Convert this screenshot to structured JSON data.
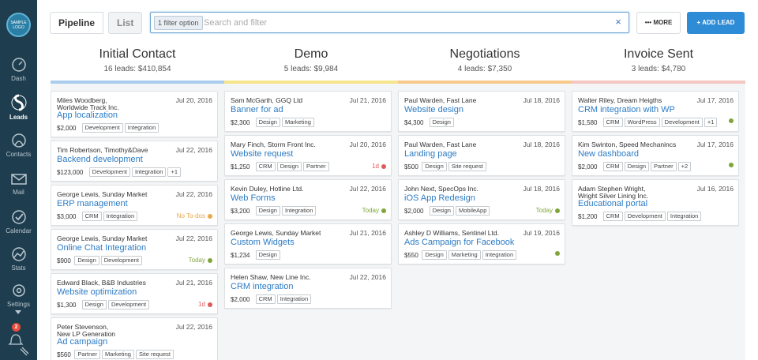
{
  "sidebar": {
    "logo_text": "SAMPLE LOGO",
    "items": [
      {
        "label": "Dash",
        "icon": "dashboard-icon"
      },
      {
        "label": "Leads",
        "icon": "leads-icon"
      },
      {
        "label": "Contacts",
        "icon": "contacts-icon"
      },
      {
        "label": "Mail",
        "icon": "mail-icon"
      },
      {
        "label": "Calendar",
        "icon": "calendar-icon"
      },
      {
        "label": "Stats",
        "icon": "stats-icon"
      },
      {
        "label": "Settings",
        "icon": "settings-icon"
      }
    ],
    "notifications_count": "2"
  },
  "toolbar": {
    "pipeline_label": "Pipeline",
    "list_label": "List",
    "filter_chip": "1 filter option",
    "search_placeholder": "Search and filter",
    "clear_icon": "×",
    "more_label": "••• MORE",
    "add_label": "+  ADD LEAD"
  },
  "colors": {
    "accent": "#2e8bd6",
    "initial_contact": "#a9cdee",
    "demo": "#f6e58d",
    "negotiations": "#f7c98a",
    "invoice_sent": "#f4c7c3",
    "green": "#7fa53a",
    "red": "#e05a5a",
    "orange": "#e8a94a"
  },
  "columns": [
    {
      "title": "Initial Contact",
      "summary": "16 leads: $410,854",
      "cards": [
        {
          "person": "Miles Woodberg,",
          "org": "Worldwide Track Inc.",
          "date": "Jul 20, 2016",
          "title": "App localization",
          "value": "$2,000",
          "tags": [
            "Development",
            "Integration"
          ],
          "status": "",
          "status_color": ""
        },
        {
          "person": "Tim Robertson,  Timothy&Dave",
          "org": "",
          "date": "Jul 22, 2016",
          "title": "Backend development",
          "value": "$123,000",
          "tags": [
            "Development",
            "Integration",
            "+1"
          ],
          "status": "",
          "status_color": ""
        },
        {
          "person": "George Lewis,  Sunday Market",
          "org": "",
          "date": "Jul 22, 2016",
          "title": "ERP management",
          "value": "$3,000",
          "tags": [
            "CRM",
            "Integration"
          ],
          "status": "No To-dos",
          "status_color": "orange"
        },
        {
          "person": "George Lewis,  Sunday Market",
          "org": "",
          "date": "Jul 22, 2016",
          "title": "Online Chat Integration",
          "value": "$900",
          "tags": [
            "Design",
            "Development"
          ],
          "status": "Today",
          "status_color": "green"
        },
        {
          "person": "Edward Black,  B&B Industries",
          "org": "",
          "date": "Jul 21, 2016",
          "title": "Website optimization",
          "value": "$1,300",
          "tags": [
            "Design",
            "Development"
          ],
          "status": "1d",
          "status_color": "red"
        },
        {
          "person": "Peter Stevenson,",
          "org": "New LP Generation",
          "date": "Jul 22, 2016",
          "title": "Ad campaign",
          "value": "$560",
          "tags": [
            "Partner",
            "Marketing",
            "Site request"
          ],
          "status": "",
          "status_color": ""
        }
      ]
    },
    {
      "title": "Demo",
      "summary": "5 leads: $9,984",
      "cards": [
        {
          "person": "Sam McGarth,  GGQ Ltd",
          "org": "",
          "date": "Jul 21, 2016",
          "title": "Banner for ad",
          "value": "$2,300",
          "tags": [
            "Design",
            "Marketing"
          ],
          "status": "",
          "status_color": ""
        },
        {
          "person": "Mary Finch,  Storm Front Inc.",
          "org": "",
          "date": "Jul 20, 2016",
          "title": "Website request",
          "value": "$1,250",
          "tags": [
            "CRM",
            "Design",
            "Partner"
          ],
          "status": "1d",
          "status_color": "red"
        },
        {
          "person": "Kevin Duley,  Hotline Ltd.",
          "org": "",
          "date": "Jul 22, 2016",
          "title": "Web Forms",
          "value": "$3,200",
          "tags": [
            "Design",
            "Integration"
          ],
          "status": "Today",
          "status_color": "green"
        },
        {
          "person": "George Lewis,  Sunday Market",
          "org": "",
          "date": "Jul 21, 2016",
          "title": "Custom Widgets",
          "value": "$1,234",
          "tags": [
            "Design"
          ],
          "status": "",
          "status_color": ""
        },
        {
          "person": "Helen Shaw,  New Line Inc.",
          "org": "",
          "date": "Jul 22, 2016",
          "title": "CRM integration",
          "value": "$2,000",
          "tags": [
            "CRM",
            "Integration"
          ],
          "status": "",
          "status_color": ""
        }
      ]
    },
    {
      "title": "Negotiations",
      "summary": "4 leads: $7,350",
      "cards": [
        {
          "person": "Paul Warden,  Fast Lane",
          "org": "",
          "date": "Jul 18, 2016",
          "title": "Website design",
          "value": "$4,300",
          "tags": [
            "Design"
          ],
          "status": "",
          "status_color": ""
        },
        {
          "person": "Paul Warden,  Fast Lane",
          "org": "",
          "date": "Jul 18, 2016",
          "title": "Landing page",
          "value": "$500",
          "tags": [
            "Design",
            "Site request"
          ],
          "status": "",
          "status_color": ""
        },
        {
          "person": "John Next,  SpecOps Inc.",
          "org": "",
          "date": "Jul 18, 2016",
          "title": "iOS App Redesign",
          "value": "$2,000",
          "tags": [
            "Design",
            "MobileApp"
          ],
          "status": "Today",
          "status_color": "green"
        },
        {
          "person": "Ashley D Williams,  Sentinel Ltd.",
          "org": "",
          "date": "Jul 19, 2016",
          "title": "Ads Campaign for Facebook",
          "value": "$550",
          "tags": [
            "Design",
            "Marketing",
            "Integration"
          ],
          "status": "",
          "status_color": "green"
        }
      ]
    },
    {
      "title": "Invoice Sent",
      "summary": "3 leads: $4,780",
      "cards": [
        {
          "person": "Walter Riley,  Dream Heigths",
          "org": "",
          "date": "Jul 17, 2016",
          "title": "CRM integration with WP",
          "value": "$1,580",
          "tags": [
            "CRM",
            "WordPress",
            "Development",
            "+1"
          ],
          "status": "",
          "status_color": "green"
        },
        {
          "person": "Kim Swinton,  Speed Mechanincs",
          "org": "",
          "date": "Jul 17, 2016",
          "title": "New dashboard",
          "value": "$2,000",
          "tags": [
            "CRM",
            "Design",
            "Partner",
            "+2"
          ],
          "status": "",
          "status_color": "green"
        },
        {
          "person": "Adam Stephen Wright,",
          "org": "Wright Silver Lining Inc.",
          "date": "Jul 16, 2016",
          "title": "Educational portal",
          "value": "$1,200",
          "tags": [
            "CRM",
            "Development",
            "Integration"
          ],
          "status": "",
          "status_color": ""
        }
      ]
    }
  ]
}
